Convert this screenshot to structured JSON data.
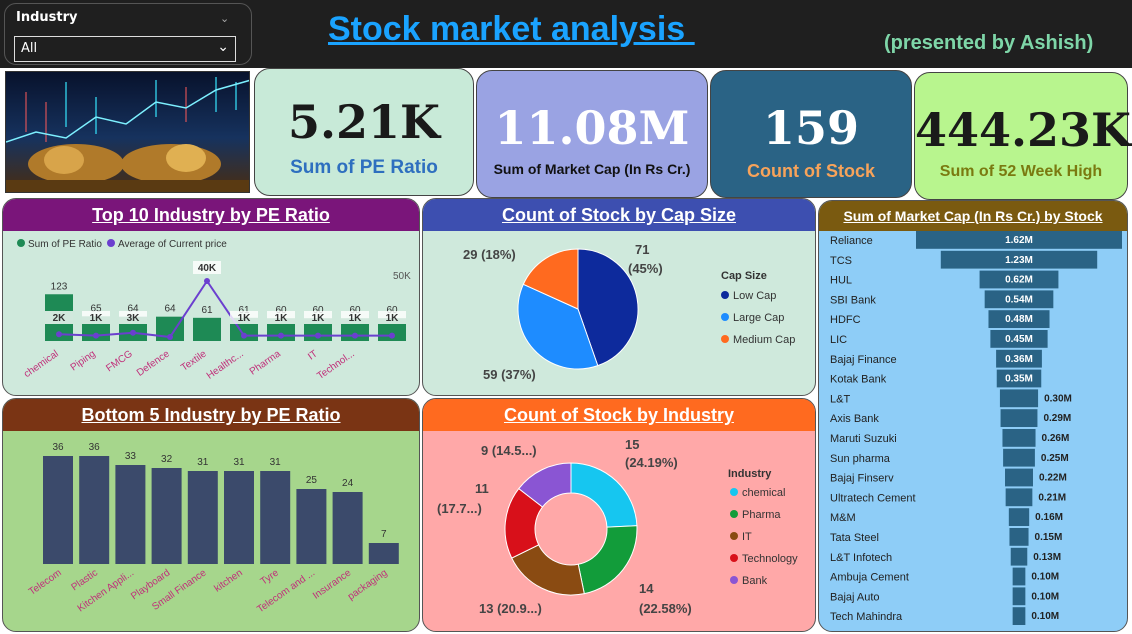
{
  "filter": {
    "label": "Industry",
    "value": "All"
  },
  "title": "Stock market analysis ",
  "subtitle": "(presented by Ashish)",
  "kpis": [
    {
      "value": "5.21K",
      "label": "Sum of PE Ratio"
    },
    {
      "value": "11.08M",
      "label": "Sum of Market Cap (In Rs Cr.)"
    },
    {
      "value": "159",
      "label": "Count of Stock"
    },
    {
      "value": "444.23K",
      "label": "Sum of 52 Week High"
    }
  ],
  "colors": {
    "kpi1": "#c8ead8",
    "kpi2": "#9aa3e3",
    "kpi3": "#2a6385",
    "kpi4": "#b8f58e",
    "bar_green": "#1e8a55",
    "line_purple": "#6b3fcf",
    "bar_navy": "#3b4a6b",
    "funnel_blue": "#2a6385"
  },
  "top10": {
    "title": "Top 10 Industry by PE Ratio",
    "legend": [
      "Sum of PE Ratio",
      "Average of Current price"
    ],
    "axis_right": [
      "50K",
      "0K"
    ]
  },
  "capsize": {
    "title": "Count of Stock by Cap Size",
    "legend_title": "Cap Size",
    "slice_labels": [
      "71",
      "(45%)",
      "59 (37%)",
      "29 (18%)"
    ]
  },
  "market": {
    "title": "Sum of Market Cap (In Rs Cr.) by Stock"
  },
  "bottom5": {
    "title": "Bottom 5 Industry by PE Ratio"
  },
  "industry": {
    "title": "Count of Stock by Industry",
    "legend_title": "Industry",
    "slice_labels": [
      "15",
      "(24.19%)",
      "14",
      "(22.58%)",
      "13 (20.9...)",
      "11",
      "(17.7...)",
      "9 (14.5...)"
    ]
  },
  "chart_data": [
    {
      "type": "bar",
      "title": "Top 10 Industry by PE Ratio",
      "categories": [
        "chemical",
        "Piping",
        "FMCG",
        "Defence",
        "Textile",
        "Healthc...",
        "Pharma",
        "IT",
        "Technol...",
        ""
      ],
      "series": [
        {
          "name": "Sum of PE Ratio",
          "values": [
            123,
            65,
            64,
            64,
            61,
            61,
            60,
            60,
            60,
            60
          ],
          "labels": [
            "123",
            "65",
            "64",
            "64",
            "61",
            "61",
            "60",
            "60",
            "60",
            "60"
          ]
        },
        {
          "name": "Average of Current price",
          "values": [
            2000,
            1000,
            3000,
            0,
            40000,
            1000,
            1000,
            1000,
            1000,
            1000
          ],
          "labels": [
            "2K",
            "1K",
            "3K",
            "",
            "40K",
            "1K",
            "1K",
            "1K",
            "1K",
            "1K"
          ]
        }
      ],
      "y2lim": [
        0,
        50000
      ]
    },
    {
      "type": "pie",
      "title": "Count of Stock by Cap Size",
      "categories": [
        "Low Cap",
        "Large Cap",
        "Medium Cap"
      ],
      "values": [
        71,
        59,
        29
      ],
      "colors": [
        "#0d2a9c",
        "#1e8cff",
        "#ff6a1f"
      ]
    },
    {
      "type": "bar",
      "title": "Sum of Market Cap (In Rs Cr.) by Stock",
      "categories": [
        "Reliance",
        "TCS",
        "HUL",
        "SBI Bank",
        "HDFC",
        "LIC",
        "Bajaj Finance",
        "Kotak Bank",
        "L&T",
        "Axis Bank",
        "Maruti Suzuki",
        "Sun pharma",
        "Bajaj Finserv",
        "Ultratech Cement",
        "M&M",
        "Tata Steel",
        "L&T Infotech",
        "Ambuja Cement",
        "Bajaj Auto",
        "Tech Mahindra"
      ],
      "values": [
        1.62,
        1.23,
        0.62,
        0.54,
        0.48,
        0.45,
        0.36,
        0.35,
        0.3,
        0.29,
        0.26,
        0.25,
        0.22,
        0.21,
        0.16,
        0.15,
        0.13,
        0.1,
        0.1,
        0.1
      ],
      "labels": [
        "1.62M",
        "1.23M",
        "0.62M",
        "0.54M",
        "0.48M",
        "0.45M",
        "0.36M",
        "0.35M",
        "0.30M",
        "0.29M",
        "0.26M",
        "0.25M",
        "0.22M",
        "0.21M",
        "0.16M",
        "0.15M",
        "0.13M",
        "0.10M",
        "0.10M",
        "0.10M"
      ]
    },
    {
      "type": "bar",
      "title": "Bottom 5 Industry by PE Ratio",
      "categories": [
        "Telecom",
        "Plastic",
        "Kitchen Appli...",
        "Playboard",
        "Small Finance",
        "kitchen",
        "Tyre",
        "Telecom and ...",
        "Insurance",
        "packaging"
      ],
      "values": [
        36,
        36,
        33,
        32,
        31,
        31,
        31,
        25,
        24,
        7
      ]
    },
    {
      "type": "pie",
      "title": "Count of Stock by Industry",
      "categories": [
        "chemical",
        "Pharma",
        "IT",
        "Technology",
        "Bank"
      ],
      "values": [
        15,
        14,
        13,
        11,
        9
      ],
      "colors": [
        "#16c6f0",
        "#129c3a",
        "#8a4b12",
        "#d8101a",
        "#8a55d3"
      ]
    }
  ]
}
